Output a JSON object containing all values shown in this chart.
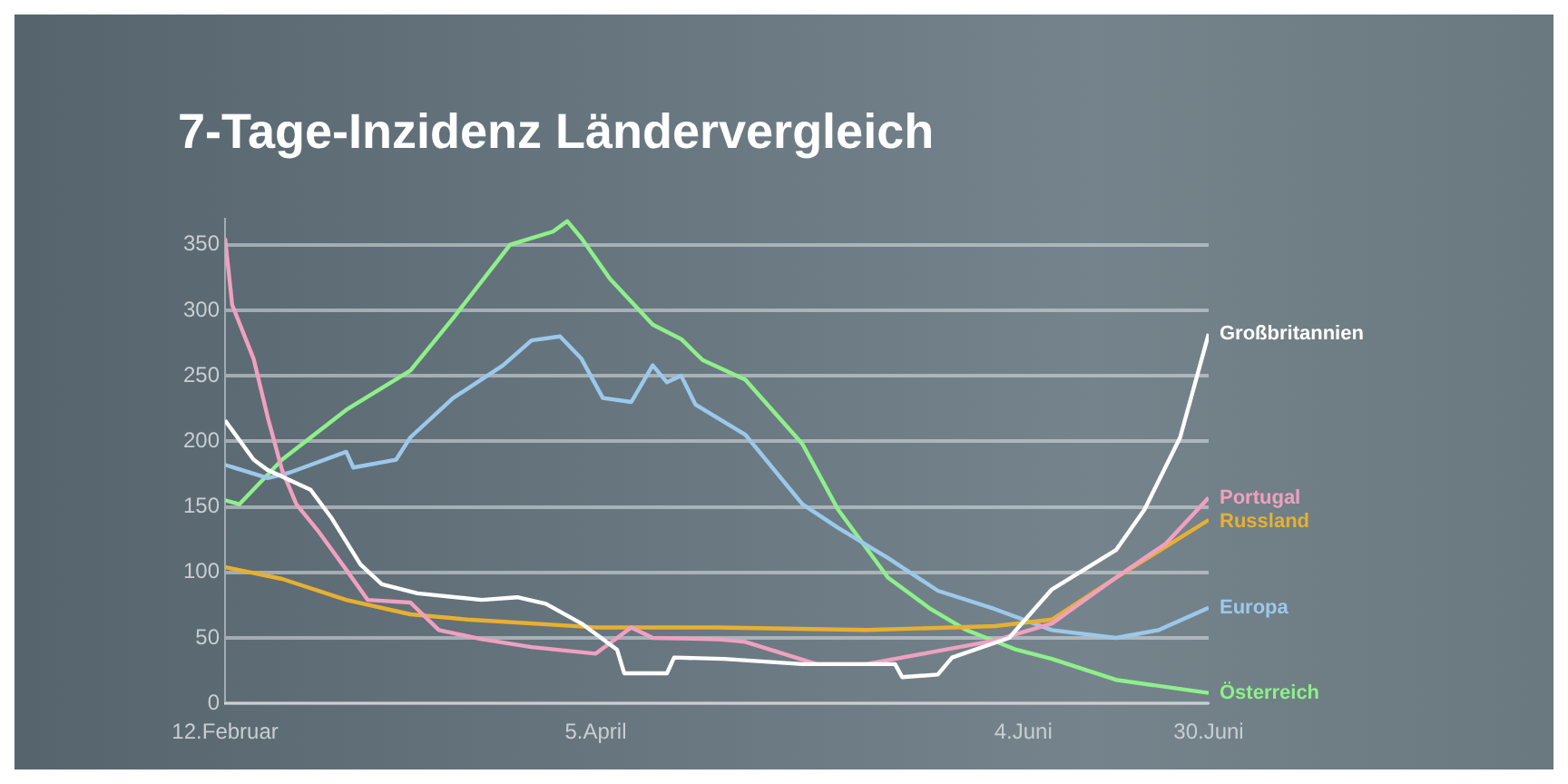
{
  "chart_data": {
    "type": "line",
    "title": "7-Tage-Inzidenz Ländervergleich",
    "xlim": [
      "--02-12",
      "--06-30"
    ],
    "xticks": [
      {
        "value": "--02-12",
        "label": "12.Februar"
      },
      {
        "value": "--04-05",
        "label": "5.April"
      },
      {
        "value": "--06-04",
        "label": "4.Juni"
      },
      {
        "value": "--06-30",
        "label": "30.Juni"
      }
    ],
    "ylim": [
      0,
      370
    ],
    "yticks": [
      0,
      50,
      100,
      150,
      200,
      250,
      300,
      350
    ],
    "grid": "y",
    "legend": false,
    "marker": "none",
    "line_style": "solid",
    "series": [
      {
        "name": "Großbritannien",
        "color": "#ffffff",
        "x": [
          "--02-12",
          "--02-16",
          "--02-18",
          "--02-24",
          "--02-27",
          "--03-03",
          "--03-06",
          "--03-11",
          "--03-20",
          "--03-25",
          "--03-29",
          "--04-03",
          "--04-08",
          "--04-09",
          "--04-15",
          "--04-16",
          "--04-23",
          "--05-04",
          "--05-17",
          "--05-18",
          "--05-23",
          "--05-25",
          "--06-02",
          "--06-08",
          "--06-17",
          "--06-21",
          "--06-26",
          "--06-30"
        ],
        "values": [
          216,
          186,
          178,
          163,
          141,
          106,
          91,
          84,
          79,
          81,
          76,
          61,
          41,
          23,
          23,
          35,
          34,
          30,
          30,
          20,
          22,
          35,
          50,
          87,
          117,
          148,
          203,
          282
        ]
      },
      {
        "name": "Portugal",
        "color": "#f0a0c0",
        "x": [
          "--02-12",
          "--02-13",
          "--02-16",
          "--02-18",
          "--02-20",
          "--02-22",
          "--02-25",
          "--03-01",
          "--03-04",
          "--03-10",
          "--03-14",
          "--03-20",
          "--03-27",
          "--04-05",
          "--04-10",
          "--04-13",
          "--04-22",
          "--04-26",
          "--05-06",
          "--05-13",
          "--05-22",
          "--05-31",
          "--06-08",
          "--06-17",
          "--06-24",
          "--06-30"
        ],
        "values": [
          355,
          304,
          263,
          218,
          178,
          152,
          132,
          102,
          79,
          77,
          56,
          49,
          43,
          38,
          58,
          50,
          49,
          47,
          30,
          30,
          39,
          48,
          61,
          96,
          122,
          157
        ]
      },
      {
        "name": "Russland",
        "color": "#e8b030",
        "x": [
          "--02-12",
          "--02-20",
          "--03-01",
          "--03-10",
          "--03-18",
          "--04-05",
          "--04-22",
          "--05-13",
          "--05-31",
          "--06-08",
          "--06-17",
          "--06-30"
        ],
        "values": [
          104,
          95,
          79,
          68,
          64,
          58,
          58,
          56,
          59,
          64,
          96,
          140
        ]
      },
      {
        "name": "Europa",
        "color": "#9cc8ea",
        "x": [
          "--02-12",
          "--02-18",
          "--02-21",
          "--03-01",
          "--03-02",
          "--03-08",
          "--03-10",
          "--03-16",
          "--03-23",
          "--03-27",
          "--03-31",
          "--04-03",
          "--04-06",
          "--04-10",
          "--04-13",
          "--04-15",
          "--04-17",
          "--04-19",
          "--04-26",
          "--05-04",
          "--05-09",
          "--05-16",
          "--05-23",
          "--05-31",
          "--06-08",
          "--06-17",
          "--06-23",
          "--06-30"
        ],
        "values": [
          182,
          172,
          176,
          192,
          180,
          186,
          203,
          233,
          258,
          277,
          280,
          263,
          233,
          230,
          258,
          245,
          250,
          228,
          205,
          152,
          134,
          111,
          86,
          72,
          56,
          50,
          56,
          73
        ]
      },
      {
        "name": "Österreich",
        "color": "#8ef08a",
        "x": [
          "--02-12",
          "--02-14",
          "--02-20",
          "--03-01",
          "--03-10",
          "--03-16",
          "--03-24",
          "--03-30",
          "--04-01",
          "--04-03",
          "--04-07",
          "--04-13",
          "--04-17",
          "--04-20",
          "--04-26",
          "--05-04",
          "--05-09",
          "--05-16",
          "--05-22",
          "--05-27",
          "--06-03",
          "--06-08",
          "--06-17",
          "--06-30"
        ],
        "values": [
          155,
          152,
          186,
          224,
          254,
          294,
          350,
          360,
          368,
          355,
          324,
          289,
          278,
          262,
          247,
          198,
          148,
          96,
          72,
          56,
          41,
          34,
          18,
          8
        ]
      }
    ]
  }
}
